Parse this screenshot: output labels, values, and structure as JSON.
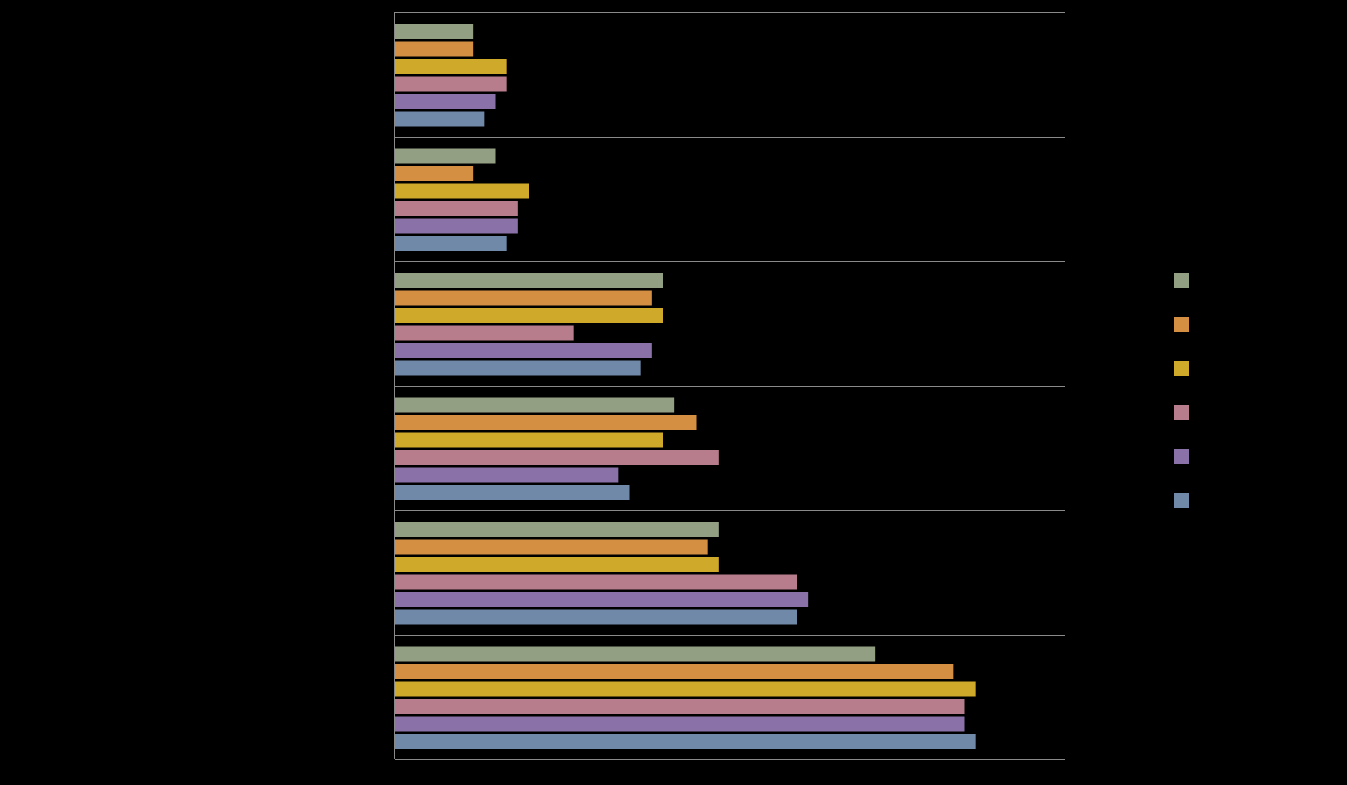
{
  "chart_data": {
    "type": "hbar",
    "categories": [
      null,
      null,
      null,
      null,
      null,
      null
    ],
    "series": [
      {
        "color": "#939f83",
        "values": [
          7,
          9,
          24,
          25,
          29,
          43
        ]
      },
      {
        "color": "#d48f42",
        "values": [
          7,
          7,
          23,
          27,
          28,
          50
        ]
      },
      {
        "color": "#cfa92a",
        "values": [
          10,
          12,
          24,
          24,
          29,
          52
        ]
      },
      {
        "color": "#b87d8c",
        "values": [
          10,
          11,
          16,
          29,
          36,
          51
        ]
      },
      {
        "color": "#8a72a8",
        "values": [
          9,
          11,
          23,
          20,
          37,
          51
        ]
      },
      {
        "color": "#7089a9",
        "values": [
          8,
          10,
          22,
          21,
          36,
          52
        ]
      }
    ],
    "xlim": [
      0,
      60
    ],
    "grid": true,
    "legend": "right"
  }
}
